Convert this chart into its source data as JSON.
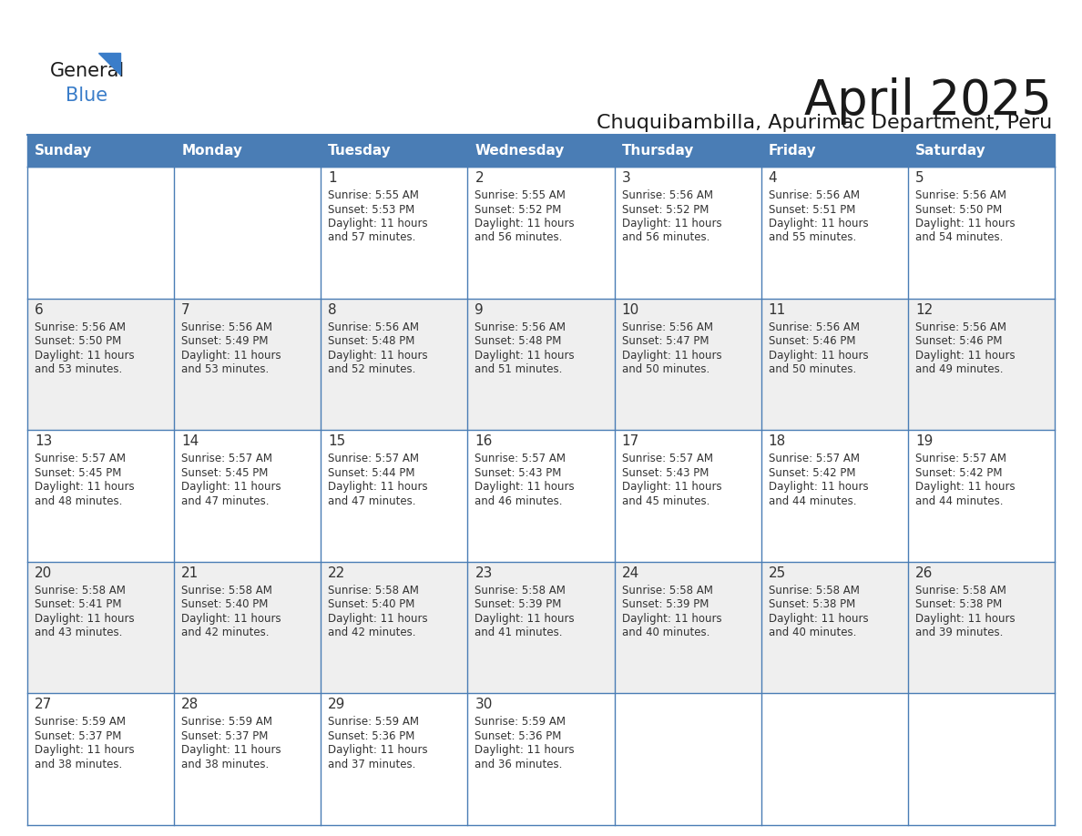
{
  "title": "April 2025",
  "subtitle": "Chuquibambilla, Apurimac Department, Peru",
  "days_of_week": [
    "Sunday",
    "Monday",
    "Tuesday",
    "Wednesday",
    "Thursday",
    "Friday",
    "Saturday"
  ],
  "header_bg": "#4A7DB5",
  "header_text": "#FFFFFF",
  "row_bg_odd": "#EFEFEF",
  "row_bg_even": "#FFFFFF",
  "border_color": "#4A7DB5",
  "text_color": "#333333",
  "title_color": "#1a1a1a",
  "calendar_data": [
    {
      "day": 1,
      "col": 2,
      "row": 0,
      "sunrise": "5:55 AM",
      "sunset": "5:53 PM",
      "daylight_minutes": "57"
    },
    {
      "day": 2,
      "col": 3,
      "row": 0,
      "sunrise": "5:55 AM",
      "sunset": "5:52 PM",
      "daylight_minutes": "56"
    },
    {
      "day": 3,
      "col": 4,
      "row": 0,
      "sunrise": "5:56 AM",
      "sunset": "5:52 PM",
      "daylight_minutes": "56"
    },
    {
      "day": 4,
      "col": 5,
      "row": 0,
      "sunrise": "5:56 AM",
      "sunset": "5:51 PM",
      "daylight_minutes": "55"
    },
    {
      "day": 5,
      "col": 6,
      "row": 0,
      "sunrise": "5:56 AM",
      "sunset": "5:50 PM",
      "daylight_minutes": "54"
    },
    {
      "day": 6,
      "col": 0,
      "row": 1,
      "sunrise": "5:56 AM",
      "sunset": "5:50 PM",
      "daylight_minutes": "53"
    },
    {
      "day": 7,
      "col": 1,
      "row": 1,
      "sunrise": "5:56 AM",
      "sunset": "5:49 PM",
      "daylight_minutes": "53"
    },
    {
      "day": 8,
      "col": 2,
      "row": 1,
      "sunrise": "5:56 AM",
      "sunset": "5:48 PM",
      "daylight_minutes": "52"
    },
    {
      "day": 9,
      "col": 3,
      "row": 1,
      "sunrise": "5:56 AM",
      "sunset": "5:48 PM",
      "daylight_minutes": "51"
    },
    {
      "day": 10,
      "col": 4,
      "row": 1,
      "sunrise": "5:56 AM",
      "sunset": "5:47 PM",
      "daylight_minutes": "50"
    },
    {
      "day": 11,
      "col": 5,
      "row": 1,
      "sunrise": "5:56 AM",
      "sunset": "5:46 PM",
      "daylight_minutes": "50"
    },
    {
      "day": 12,
      "col": 6,
      "row": 1,
      "sunrise": "5:56 AM",
      "sunset": "5:46 PM",
      "daylight_minutes": "49"
    },
    {
      "day": 13,
      "col": 0,
      "row": 2,
      "sunrise": "5:57 AM",
      "sunset": "5:45 PM",
      "daylight_minutes": "48"
    },
    {
      "day": 14,
      "col": 1,
      "row": 2,
      "sunrise": "5:57 AM",
      "sunset": "5:45 PM",
      "daylight_minutes": "47"
    },
    {
      "day": 15,
      "col": 2,
      "row": 2,
      "sunrise": "5:57 AM",
      "sunset": "5:44 PM",
      "daylight_minutes": "47"
    },
    {
      "day": 16,
      "col": 3,
      "row": 2,
      "sunrise": "5:57 AM",
      "sunset": "5:43 PM",
      "daylight_minutes": "46"
    },
    {
      "day": 17,
      "col": 4,
      "row": 2,
      "sunrise": "5:57 AM",
      "sunset": "5:43 PM",
      "daylight_minutes": "45"
    },
    {
      "day": 18,
      "col": 5,
      "row": 2,
      "sunrise": "5:57 AM",
      "sunset": "5:42 PM",
      "daylight_minutes": "44"
    },
    {
      "day": 19,
      "col": 6,
      "row": 2,
      "sunrise": "5:57 AM",
      "sunset": "5:42 PM",
      "daylight_minutes": "44"
    },
    {
      "day": 20,
      "col": 0,
      "row": 3,
      "sunrise": "5:58 AM",
      "sunset": "5:41 PM",
      "daylight_minutes": "43"
    },
    {
      "day": 21,
      "col": 1,
      "row": 3,
      "sunrise": "5:58 AM",
      "sunset": "5:40 PM",
      "daylight_minutes": "42"
    },
    {
      "day": 22,
      "col": 2,
      "row": 3,
      "sunrise": "5:58 AM",
      "sunset": "5:40 PM",
      "daylight_minutes": "42"
    },
    {
      "day": 23,
      "col": 3,
      "row": 3,
      "sunrise": "5:58 AM",
      "sunset": "5:39 PM",
      "daylight_minutes": "41"
    },
    {
      "day": 24,
      "col": 4,
      "row": 3,
      "sunrise": "5:58 AM",
      "sunset": "5:39 PM",
      "daylight_minutes": "40"
    },
    {
      "day": 25,
      "col": 5,
      "row": 3,
      "sunrise": "5:58 AM",
      "sunset": "5:38 PM",
      "daylight_minutes": "40"
    },
    {
      "day": 26,
      "col": 6,
      "row": 3,
      "sunrise": "5:58 AM",
      "sunset": "5:38 PM",
      "daylight_minutes": "39"
    },
    {
      "day": 27,
      "col": 0,
      "row": 4,
      "sunrise": "5:59 AM",
      "sunset": "5:37 PM",
      "daylight_minutes": "38"
    },
    {
      "day": 28,
      "col": 1,
      "row": 4,
      "sunrise": "5:59 AM",
      "sunset": "5:37 PM",
      "daylight_minutes": "38"
    },
    {
      "day": 29,
      "col": 2,
      "row": 4,
      "sunrise": "5:59 AM",
      "sunset": "5:36 PM",
      "daylight_minutes": "37"
    },
    {
      "day": 30,
      "col": 3,
      "row": 4,
      "sunrise": "5:59 AM",
      "sunset": "5:36 PM",
      "daylight_minutes": "36"
    }
  ]
}
